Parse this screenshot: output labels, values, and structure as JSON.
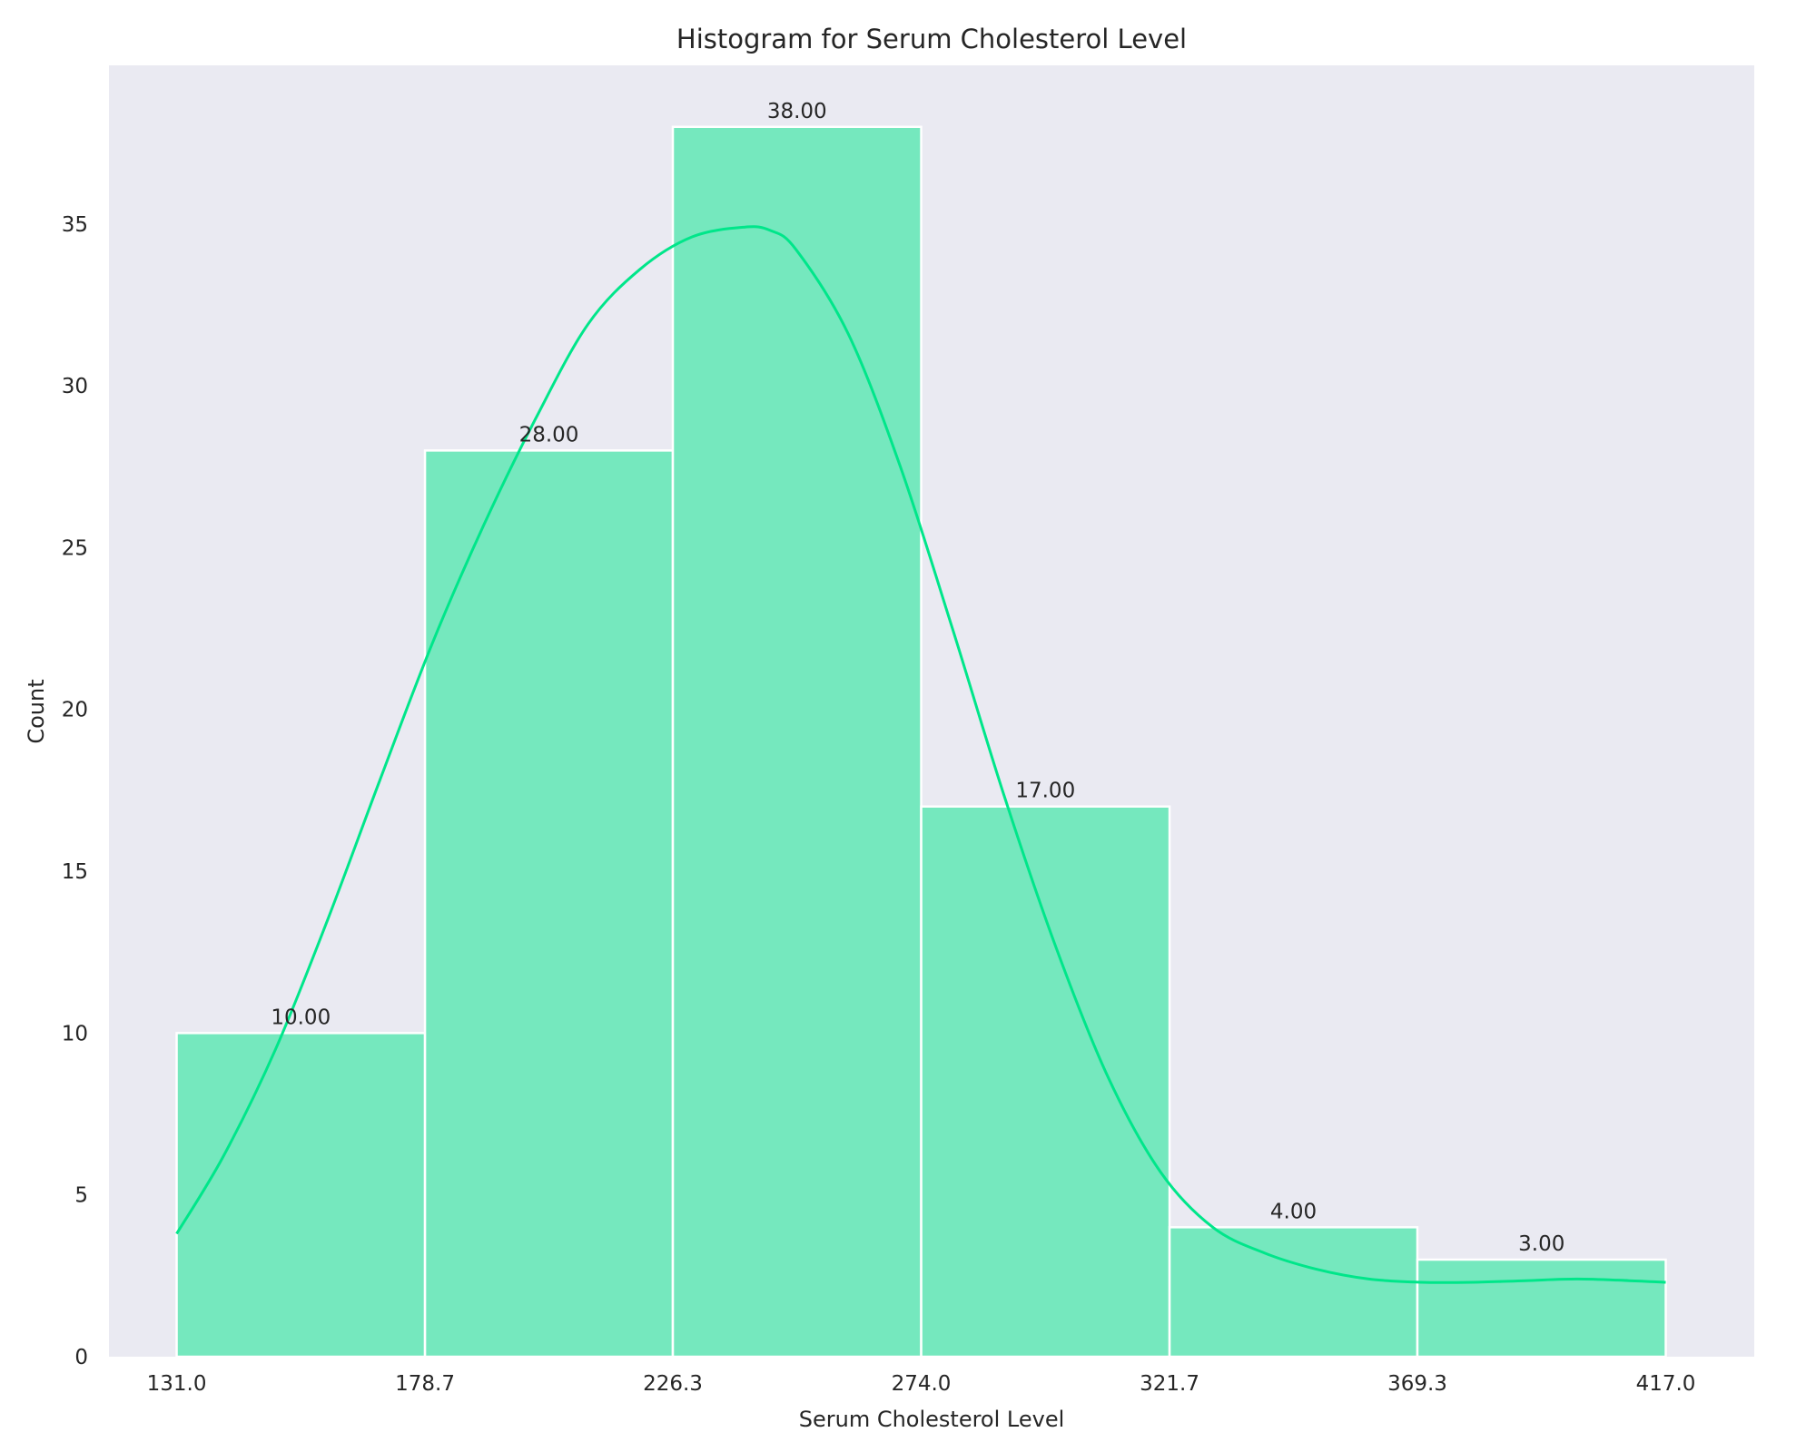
{
  "chart_data": {
    "type": "bar",
    "title": "Histogram for Serum Cholesterol Level",
    "xlabel": "Serum Cholesterol Level",
    "ylabel": "Count",
    "xlim": [
      118,
      434
    ],
    "ylim": [
      0,
      39.9
    ],
    "grid": false,
    "bin_edges": [
      131.0,
      178.7,
      226.3,
      274.0,
      321.7,
      369.3,
      417.0
    ],
    "x_ticks": [
      131.0,
      178.7,
      226.3,
      274.0,
      321.7,
      369.3,
      417.0
    ],
    "x_tick_labels": [
      "131.0",
      "178.7",
      "226.3",
      "274.0",
      "321.7",
      "369.3",
      "417.0"
    ],
    "y_ticks": [
      0,
      5,
      10,
      15,
      20,
      25,
      30,
      35
    ],
    "y_tick_labels": [
      "0",
      "5",
      "10",
      "15",
      "20",
      "25",
      "30",
      "35"
    ],
    "values": [
      10,
      28,
      38,
      17,
      4,
      3
    ],
    "data_labels": [
      "10.00",
      "28.00",
      "38.00",
      "17.00",
      "4.00",
      "3.00"
    ],
    "kde": {
      "x": [
        131,
        140,
        150,
        160,
        170,
        180,
        190,
        200,
        210,
        220,
        230,
        240,
        245,
        250,
        260,
        270,
        280,
        290,
        300,
        310,
        320,
        330,
        340,
        350,
        360,
        370,
        380,
        390,
        400,
        410,
        417
      ],
      "y": [
        3.8,
        6.2,
        9.5,
        13.5,
        17.8,
        22.0,
        25.7,
        29.0,
        31.9,
        33.6,
        34.6,
        34.9,
        34.8,
        34.2,
        31.6,
        27.5,
        22.5,
        17.3,
        12.6,
        8.6,
        5.7,
        4.0,
        3.2,
        2.7,
        2.4,
        2.3,
        2.3,
        2.35,
        2.4,
        2.35,
        2.3
      ]
    },
    "colors": {
      "bar_fill": "#00e68a",
      "bar_opacity": 0.5,
      "bar_edge": "#ffffff",
      "kde_line": "#00e68a",
      "plot_bg": "#eaeaf2",
      "figure_bg": "#ffffff"
    }
  }
}
